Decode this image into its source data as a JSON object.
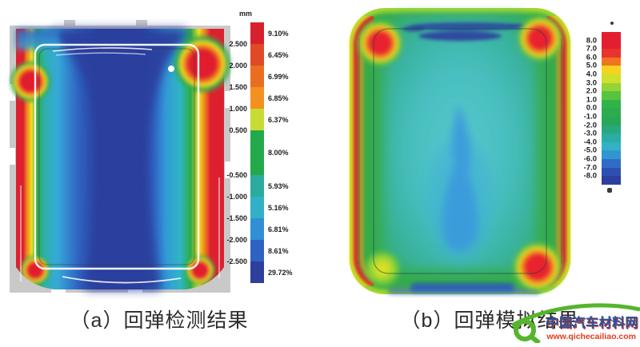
{
  "panel_a": {
    "caption": "（a）回弹检测结果",
    "colorbar": {
      "unit": "mm",
      "bands": [
        {
          "color": "#d7212e",
          "pct": "9.10%",
          "span": 1
        },
        {
          "color": "#e04a26",
          "pct": "6.45%",
          "span": 1
        },
        {
          "color": "#e96e21",
          "pct": "6.99%",
          "span": 1
        },
        {
          "color": "#f39120",
          "pct": "6.85%",
          "span": 1
        },
        {
          "color": "#c8db34",
          "pct": "6.37%",
          "span": 1
        },
        {
          "color": "#23a94c",
          "pct": "8.00%",
          "span": 2
        },
        {
          "color": "#2baaa0",
          "pct": "5.93%",
          "span": 1
        },
        {
          "color": "#31b0c6",
          "pct": "5.16%",
          "span": 1
        },
        {
          "color": "#318fd5",
          "pct": "6.81%",
          "span": 1
        },
        {
          "color": "#2f63c1",
          "pct": "8.61%",
          "span": 1
        },
        {
          "color": "#2e3f9d",
          "pct": "29.72%",
          "span": 1
        }
      ],
      "ticks": [
        "2.500",
        "2.000",
        "1.500",
        "1.000",
        "0.500",
        "-0.500",
        "-1.000",
        "-1.500",
        "-2.000",
        "-2.500"
      ]
    }
  },
  "panel_b": {
    "caption": "（b）回弹模拟结果",
    "colorbar": {
      "colors": [
        "#e41e31",
        "#e41e31",
        "#e8342c",
        "#f0741f",
        "#f5d320",
        "#cfe02b",
        "#94d434",
        "#57c43f",
        "#30b44a",
        "#2bad4d",
        "#27a757",
        "#28a87e",
        "#2aada2",
        "#32b2c4",
        "#3295d2",
        "#2f6cc4",
        "#2d4fb2",
        "#2c3f9e"
      ],
      "ticks": [
        "8.0",
        "7.0",
        "6.0",
        "5.0",
        "4.0",
        "3.0",
        "2.0",
        "1.0",
        "0.0",
        "-1.0",
        "-2.0",
        "-3.0",
        "-4.0",
        "-5.0",
        "-6.0",
        "-7.0",
        "-8.0"
      ]
    }
  },
  "watermark": {
    "site_name": "中国汽车材料网",
    "site_url": "www.qichecailiao.com"
  },
  "chart_data": [
    {
      "type": "heatmap",
      "panel": "a",
      "title": "（a）回弹检测结果",
      "unit": "mm",
      "legend_position": "right",
      "bands": [
        {
          "range": "> 2.500",
          "color": "#d7212e",
          "share_pct": 9.1
        },
        {
          "range": "2.000 to 2.500",
          "color": "#e04a26",
          "share_pct": 6.45
        },
        {
          "range": "1.500 to 2.000",
          "color": "#e96e21",
          "share_pct": 6.99
        },
        {
          "range": "1.000 to 1.500",
          "color": "#f39120",
          "share_pct": 6.85
        },
        {
          "range": "0.500 to 1.000",
          "color": "#c8db34",
          "share_pct": 6.37
        },
        {
          "range": "-0.500 to 0.500",
          "color": "#23a94c",
          "share_pct": 8.0
        },
        {
          "range": "-1.000 to -0.500",
          "color": "#2baaa0",
          "share_pct": 5.93
        },
        {
          "range": "-1.500 to -1.000",
          "color": "#31b0c6",
          "share_pct": 5.16
        },
        {
          "range": "-2.000 to -1.500",
          "color": "#318fd5",
          "share_pct": 6.81
        },
        {
          "range": "-2.500 to -2.000",
          "color": "#2f63c1",
          "share_pct": 8.61
        },
        {
          "range": "< -2.500",
          "color": "#2e3f9d",
          "share_pct": 29.72
        }
      ],
      "description": "Measured springback deviation contour of a rectangular panel: deep-blue negative region dominates the centre, rainbow bands running to red along the left and right edges and at the corners; grey fixture plate with notches behind the part."
    },
    {
      "type": "heatmap",
      "panel": "b",
      "title": "（b）回弹模拟结果",
      "legend_position": "right",
      "scale_min": -8.0,
      "scale_max": 8.0,
      "scale_step": 1.0,
      "tick_labels": [
        "8.0",
        "7.0",
        "6.0",
        "5.0",
        "4.0",
        "3.0",
        "2.0",
        "1.0",
        "0.0",
        "-1.0",
        "-2.0",
        "-3.0",
        "-4.0",
        "-5.0",
        "-6.0",
        "-7.0",
        "-8.0"
      ],
      "description": "Simulated springback contour of the same panel: teal/green centre with a light-blue patch in the lower middle, red hot spots at three corners and along both side edges, dark-blue bands at the top and bottom centre."
    }
  ]
}
